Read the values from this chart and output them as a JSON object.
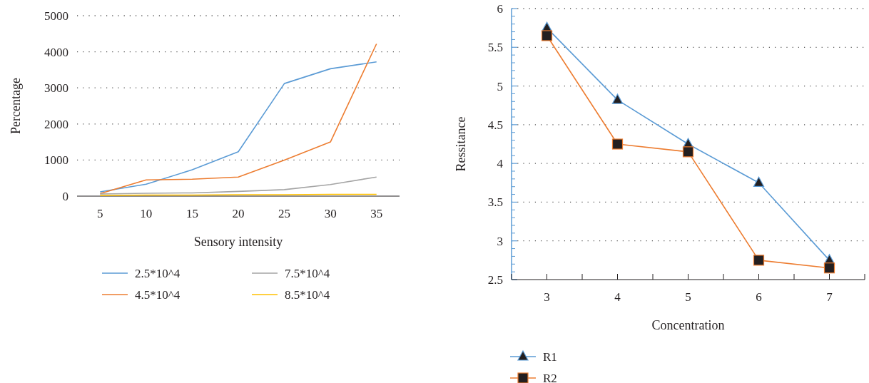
{
  "chart_data": [
    {
      "type": "line",
      "xlabel": "Sensory intensity",
      "ylabel": "Percentage",
      "categories": [
        "5",
        "10",
        "15",
        "20",
        "25",
        "30",
        "35"
      ],
      "series": [
        {
          "name": "2.5*10^4",
          "color": "#5b9bd5",
          "values": [
            120,
            330,
            730,
            1230,
            3120,
            3530,
            3720
          ]
        },
        {
          "name": "4.5*10^4",
          "color": "#ed7d31",
          "values": [
            70,
            450,
            470,
            530,
            1000,
            1500,
            4220
          ]
        },
        {
          "name": "7.5*10^4",
          "color": "#a5a5a5",
          "values": [
            60,
            80,
            90,
            130,
            180,
            320,
            530
          ]
        },
        {
          "name": "8.5*10^4",
          "color": "#ffc000",
          "values": [
            20,
            30,
            30,
            40,
            40,
            50,
            50
          ]
        }
      ],
      "ylim": [
        0,
        5000
      ],
      "yticks": [
        0,
        1000,
        2000,
        3000,
        4000,
        5000
      ],
      "grid": "y",
      "legend": "bottom",
      "marker": "none",
      "line_style": "solid"
    },
    {
      "type": "line",
      "xlabel": "Concentration",
      "ylabel": "Ressitance",
      "categories": [
        "3",
        "4",
        "5",
        "6",
        "7"
      ],
      "series": [
        {
          "name": "R1",
          "color": "#5b9bd5",
          "marker": "triangle",
          "values": [
            5.75,
            4.82,
            4.25,
            3.75,
            2.75
          ]
        },
        {
          "name": "R2",
          "color": "#ed7d31",
          "marker": "square",
          "values": [
            5.65,
            4.25,
            4.15,
            2.75,
            2.65
          ]
        }
      ],
      "ylim": [
        2.5,
        6
      ],
      "yticks": [
        2.5,
        3,
        3.5,
        4,
        4.5,
        5,
        5.5,
        6
      ],
      "grid": "y",
      "legend": "bottom left",
      "line_style": "solid"
    }
  ]
}
